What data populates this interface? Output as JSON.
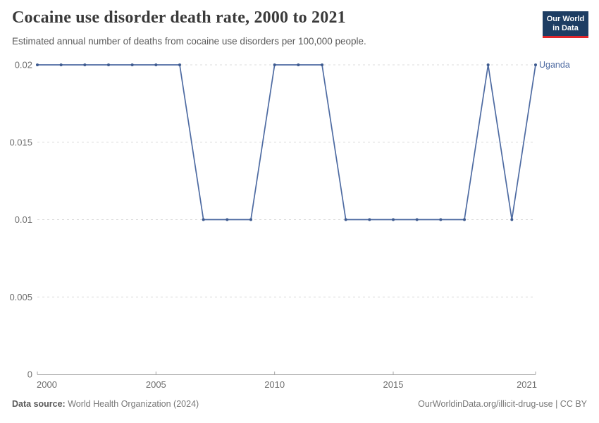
{
  "header": {
    "title": "Cocaine use disorder death rate, 2000 to 2021",
    "subtitle": "Estimated annual number of deaths from cocaine use disorders per 100,000 people.",
    "logo": {
      "line1": "Our World",
      "line2": "in Data",
      "bg_color": "#1d3d63",
      "accent_color": "#e0262b"
    }
  },
  "chart_data": {
    "type": "line",
    "title": "Cocaine use disorder death rate, 2000 to 2021",
    "subtitle": "Estimated annual number of deaths from cocaine use disorders per 100,000 people.",
    "x": [
      2000,
      2001,
      2002,
      2003,
      2004,
      2005,
      2006,
      2007,
      2008,
      2009,
      2010,
      2011,
      2012,
      2013,
      2014,
      2015,
      2016,
      2017,
      2018,
      2019,
      2020,
      2021
    ],
    "series": [
      {
        "name": "Uganda",
        "color": "#4e6ba2",
        "point_color": "#3d5a8f",
        "values": [
          0.02,
          0.02,
          0.02,
          0.02,
          0.02,
          0.02,
          0.02,
          0.01,
          0.01,
          0.01,
          0.02,
          0.02,
          0.02,
          0.01,
          0.01,
          0.01,
          0.01,
          0.01,
          0.01,
          0.02,
          0.01,
          0.02
        ]
      }
    ],
    "xlabel": "",
    "ylabel": "",
    "ylim": [
      0,
      0.02
    ],
    "yticks": [
      0,
      0.005,
      0.01,
      0.015,
      0.02
    ],
    "ytick_labels": [
      "0",
      "0.005",
      "0.01",
      "0.015",
      "0.02"
    ],
    "xticks": [
      2000,
      2005,
      2010,
      2015,
      2021
    ],
    "xtick_labels": [
      "2000",
      "2005",
      "2010",
      "2015",
      "2021"
    ],
    "grid": "horizontal-dashed",
    "gridline_color": "#dcdcdc",
    "axis_color": "#a5a5a5",
    "tick_label_color": "#6e6e6e",
    "legend": "line-end-label"
  },
  "footer": {
    "source_label": "Data source:",
    "source_value": " World Health Organization (2024)",
    "credit": "OurWorldinData.org/illicit-drug-use | CC BY"
  }
}
